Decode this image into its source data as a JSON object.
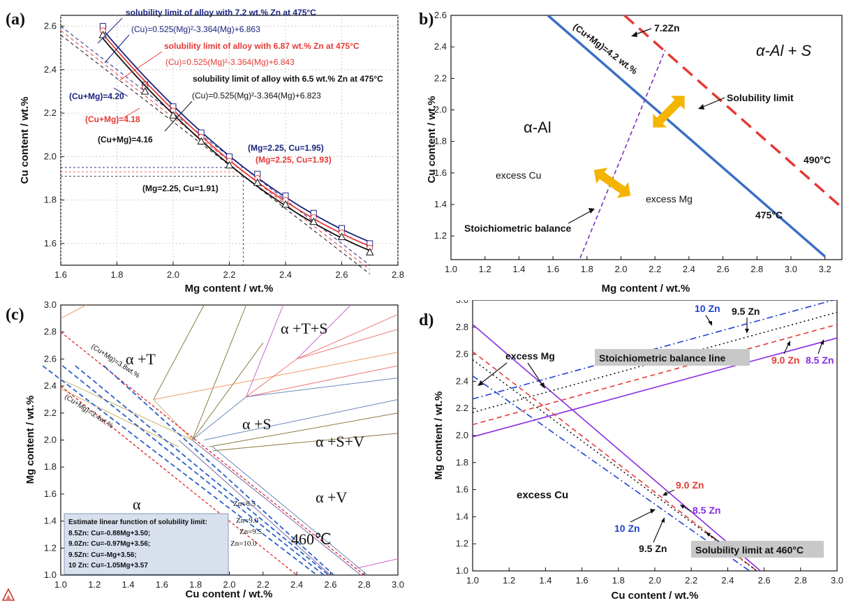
{
  "chart_data": [
    {
      "panel": "(a)",
      "type": "line",
      "xlabel": "Mg content / wt.%",
      "ylabel": "Cu content / wt.%",
      "xlim": [
        1.6,
        2.8
      ],
      "ylim": [
        1.5,
        2.65
      ],
      "xticks": [
        "1.6",
        "1.8",
        "2.0",
        "2.2",
        "2.4",
        "2.6",
        "2.8"
      ],
      "yticks": [
        "1.6",
        "1.8",
        "2.0",
        "2.2",
        "2.4",
        "2.6"
      ],
      "grid": true,
      "series": [
        {
          "color": "#1a237e",
          "marker": "square",
          "x": [
            1.75,
            1.9,
            2.0,
            2.1,
            2.2,
            2.3,
            2.4,
            2.5,
            2.6,
            2.7
          ],
          "y": [
            2.6,
            2.33,
            2.23,
            2.11,
            2.0,
            1.92,
            1.82,
            1.74,
            1.67,
            1.6
          ],
          "fit": [
            0.525,
            -3.364,
            6.863
          ]
        },
        {
          "color": "#e53935",
          "marker": "circle",
          "x": [
            1.75,
            1.9,
            2.0,
            2.1,
            2.2,
            2.3,
            2.4,
            2.5,
            2.6,
            2.7
          ],
          "y": [
            2.58,
            2.32,
            2.21,
            2.09,
            1.98,
            1.9,
            1.8,
            1.72,
            1.65,
            1.58
          ],
          "fit": [
            0.525,
            -3.364,
            6.843
          ]
        },
        {
          "color": "#111111",
          "marker": "triangle",
          "x": [
            1.75,
            1.9,
            2.0,
            2.1,
            2.2,
            2.3,
            2.4,
            2.5,
            2.6,
            2.7
          ],
          "y": [
            2.56,
            2.3,
            2.19,
            2.07,
            1.96,
            1.88,
            1.78,
            1.7,
            1.63,
            1.56
          ],
          "fit": [
            0.525,
            -3.364,
            6.823
          ]
        }
      ],
      "dashed_lines": [
        {
          "color": "#1a237e",
          "sum": 4.2
        },
        {
          "color": "#e53935",
          "sum": 4.18
        },
        {
          "color": "#111111",
          "sum": 4.16
        }
      ],
      "annotations": [
        {
          "text": "solubility limit of alloy with 7.2 wt.% Zn at 475°C",
          "color": "#1a237e",
          "bold": true
        },
        {
          "text": "(Cu)=0.525(Mg)²-3.364(Mg)+6.863",
          "color": "#1a237e",
          "bold": false
        },
        {
          "text": "solubility limit of alloy with 6.87 wt.% Zn at 475°C",
          "color": "#e53935",
          "bold": true
        },
        {
          "text": "(Cu)=0.525(Mg)²-3.364(Mg)+6.843",
          "color": "#e53935",
          "bold": false
        },
        {
          "text": "solubility limit of alloy with 6.5 wt.% Zn at 475°C",
          "color": "#111111",
          "bold": true
        },
        {
          "text": "(Cu)=0.525(Mg)²-3.364(Mg)+6.823",
          "color": "#111111",
          "bold": false
        },
        {
          "text": "(Cu+Mg)=4.20",
          "color": "#1a237e",
          "bold": true
        },
        {
          "text": "(Cu+Mg)=4.18",
          "color": "#e53935",
          "bold": true
        },
        {
          "text": "(Cu+Mg)=4.16",
          "color": "#111111",
          "bold": true
        },
        {
          "text": "(Mg=2.25, Cu=1.95)",
          "color": "#1a237e",
          "bold": true
        },
        {
          "text": "(Mg=2.25, Cu=1.93)",
          "color": "#e53935",
          "bold": true
        },
        {
          "text": "(Mg=2.25, Cu=1.91)",
          "color": "#111111",
          "bold": true
        }
      ]
    },
    {
      "panel": "(b)",
      "type": "line",
      "xlabel": "Mg content / wt.%",
      "ylabel": "Cu content / wt.%",
      "xlim": [
        1.0,
        3.3
      ],
      "ylim": [
        1.05,
        2.6
      ],
      "xticks": [
        "1.0",
        "1.2",
        "1.4",
        "1.6",
        "1.8",
        "2.0",
        "2.2",
        "2.4",
        "2.6",
        "2.8",
        "3.0",
        "3.2"
      ],
      "yticks": [
        "1.2",
        "1.4",
        "1.6",
        "1.8",
        "2.0",
        "2.2",
        "2.4",
        "2.6"
      ],
      "lines": [
        {
          "name": "475°C",
          "color": "#3b6fc4",
          "x": [
            1.57,
            3.2
          ],
          "y": [
            2.6,
            1.07
          ]
        },
        {
          "name": "490°C",
          "color": "#e53935",
          "x": [
            2.02,
            3.3
          ],
          "y": [
            2.6,
            1.38
          ]
        },
        {
          "name": "Stoichiometric balance",
          "color": "#7b2fbf",
          "x": [
            1.76,
            2.26
          ],
          "y": [
            1.06,
            2.38
          ]
        }
      ],
      "annotations": [
        "7.2Zn",
        "(Cu+Mg)=4.2 wt.%",
        "α-Al + S",
        "Solubility limit",
        "α-Al",
        "excess Cu",
        "excess Mg",
        "490°C",
        "475°C",
        "Stoichiometric balance"
      ]
    },
    {
      "panel": "(c)",
      "type": "line",
      "xlabel": "Cu content / wt.%",
      "ylabel": "Mg content / wt.%",
      "xlim": [
        1.0,
        3.0
      ],
      "ylim": [
        1.0,
        3.0
      ],
      "xticks": [
        "1.0",
        "1.2",
        "1.4",
        "1.6",
        "1.8",
        "2.0",
        "2.2",
        "2.4",
        "2.6",
        "2.8",
        "3.0"
      ],
      "yticks": [
        "1.0",
        "1.2",
        "1.4",
        "1.6",
        "1.8",
        "2.0",
        "2.2",
        "2.4",
        "2.6",
        "2.8",
        "3.0"
      ],
      "regions": [
        "α +T",
        "α +T+S",
        "α +S",
        "α +S+V",
        "α",
        "α +V",
        "460℃"
      ],
      "iso_labels": [
        "(Cu+Mg)=3.8wt.%",
        "(Cu+Mg)=3.4wt.%",
        "Zn=8.5",
        "Zn=9.0",
        "Zn=9.5",
        "Zn=10.0"
      ],
      "legend_box": [
        "Estimate linear function of solubility limit:",
        "8.5Zn: Cu=-0.88Mg+3.50;",
        "9.0Zn: Cu=-0.97Mg+3.56;",
        "9.5Zn: Cu=-Mg+3.56;",
        "10 Zn: Cu=-1.05Mg+3.57"
      ],
      "solubility_fits": [
        {
          "name": "8.5Zn",
          "a": -0.88,
          "b": 3.5
        },
        {
          "name": "9.0Zn",
          "a": -0.97,
          "b": 3.56
        },
        {
          "name": "9.5Zn",
          "a": -1.0,
          "b": 3.56
        },
        {
          "name": "10 Zn",
          "a": -1.05,
          "b": 3.57
        }
      ],
      "sum_lines": [
        3.8,
        3.4
      ]
    },
    {
      "panel": "(d)",
      "type": "line",
      "xlabel": "Cu content / wt.%",
      "ylabel": "Mg content / wt.%",
      "xlim": [
        1.0,
        3.0
      ],
      "ylim": [
        1.0,
        3.0
      ],
      "xticks": [
        "1.0",
        "1.2",
        "1.4",
        "1.6",
        "1.8",
        "2.0",
        "2.2",
        "2.4",
        "2.6",
        "2.8",
        "3.0"
      ],
      "yticks": [
        "1.0",
        "1.2",
        "1.4",
        "1.6",
        "1.8",
        "2.0",
        "2.2",
        "2.4",
        "2.6",
        "2.8",
        "3.0"
      ],
      "series": [
        {
          "name": "8.5 Zn",
          "color": "#8a2be2",
          "dash": "solid",
          "sol": [
            [
              1.0,
              2.82
            ],
            [
              2.58,
              1.0
            ]
          ],
          "stoich": [
            [
              1.0,
              1.99
            ],
            [
              3.0,
              2.72
            ]
          ]
        },
        {
          "name": "9.0 Zn",
          "color": "#e53935",
          "dash": "dash",
          "sol": [
            [
              1.0,
              2.62
            ],
            [
              2.56,
              1.0
            ]
          ],
          "stoich": [
            [
              1.0,
              2.08
            ],
            [
              3.0,
              2.82
            ]
          ]
        },
        {
          "name": "9.5 Zn",
          "color": "#111111",
          "dash": "dot",
          "sol": [
            [
              1.0,
              2.56
            ],
            [
              2.56,
              1.0
            ]
          ],
          "stoich": [
            [
              1.0,
              2.17
            ],
            [
              3.0,
              2.91
            ]
          ]
        },
        {
          "name": "10 Zn",
          "color": "#1e40d0",
          "dash": "dashdot",
          "sol": [
            [
              1.0,
              2.44
            ],
            [
              2.52,
              1.0
            ]
          ],
          "stoich": [
            [
              1.0,
              2.27
            ],
            [
              2.98,
              3.0
            ]
          ]
        }
      ],
      "annotations": [
        "excess Mg",
        "Stoichiometric balance line",
        "10 Zn",
        "9.5 Zn",
        "9.0 Zn",
        "8.5 Zn",
        "excess Cu",
        "10 Zn",
        "9.5 Zn",
        "9.0 Zn",
        "8.5 Zn",
        "Solubility limit at 460°C"
      ]
    }
  ]
}
